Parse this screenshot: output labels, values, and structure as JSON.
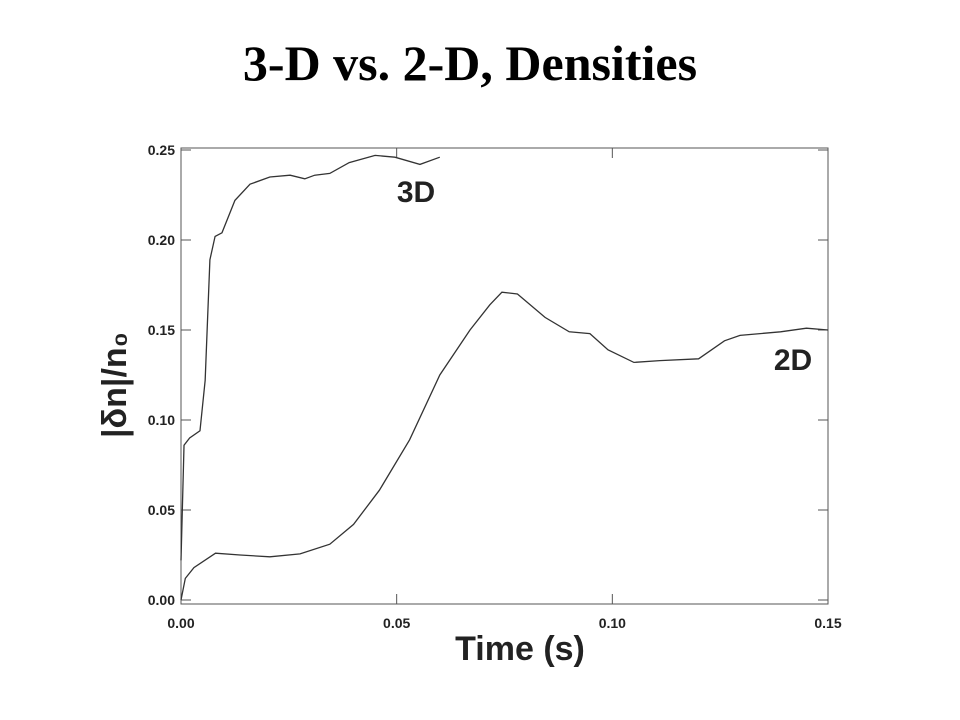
{
  "chart_data": {
    "type": "line",
    "title": "3-D vs. 2-D, Densities",
    "x_label": "Time (s)",
    "y_label": "|δn|/n₀",
    "xlim": [
      0,
      0.15
    ],
    "ylim": [
      0,
      0.25
    ],
    "xticks": [
      {
        "value": 0,
        "label": "0.00"
      },
      0.05,
      {
        "value": 0.1,
        "label": "0.10"
      },
      0.15
    ],
    "yticks": [
      {
        "value": 0,
        "label": "0.00"
      },
      0.05,
      {
        "value": 0.1,
        "label": "0.10"
      },
      0.15,
      {
        "value": 0.2,
        "label": "0.20"
      },
      0.25
    ],
    "series": [
      {
        "name": "3D",
        "color": "#333333",
        "x": [
          0,
          0.0007,
          0.002,
          0.0044,
          0.0056,
          0.0067,
          0.0079,
          0.0095,
          0.0125,
          0.016,
          0.0206,
          0.0253,
          0.0287,
          0.031,
          0.0345,
          0.039,
          0.045,
          0.0496,
          0.0554,
          0.06
        ],
        "values": [
          0.022,
          0.086,
          0.09,
          0.094,
          0.122,
          0.189,
          0.202,
          0.204,
          0.222,
          0.231,
          0.235,
          0.236,
          0.234,
          0.236,
          0.237,
          0.243,
          0.247,
          0.246,
          0.242,
          0.246
        ]
      },
      {
        "name": "2D",
        "color": "#333333",
        "x": [
          0,
          0.001,
          0.003,
          0.008,
          0.0137,
          0.0206,
          0.0276,
          0.0345,
          0.04,
          0.046,
          0.053,
          0.06,
          0.067,
          0.0716,
          0.0744,
          0.078,
          0.0844,
          0.09,
          0.0948,
          0.099,
          0.105,
          0.111,
          0.12,
          0.126,
          0.1296,
          0.139,
          0.145,
          0.15
        ],
        "values": [
          0,
          0.012,
          0.018,
          0.026,
          0.025,
          0.024,
          0.0256,
          0.031,
          0.042,
          0.061,
          0.089,
          0.125,
          0.15,
          0.164,
          0.171,
          0.17,
          0.157,
          0.149,
          0.148,
          0.139,
          0.132,
          0.133,
          0.134,
          0.144,
          0.147,
          0.149,
          0.151,
          0.15
        ]
      }
    ]
  }
}
